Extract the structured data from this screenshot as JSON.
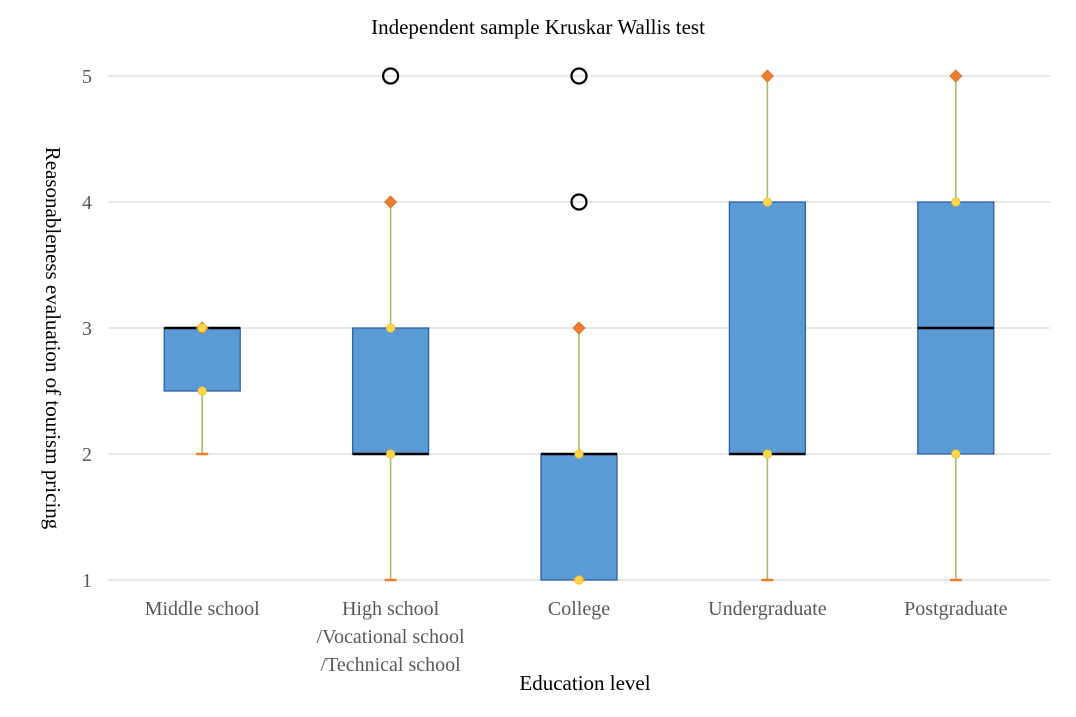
{
  "chart_data": {
    "type": "boxplot",
    "title": "Independent sample Kruskar Wallis test",
    "xlabel": "Education level",
    "ylabel": "Reasonableness evaluation of tourism pricing",
    "ylim": [
      1,
      5
    ],
    "yticks": [
      "1",
      "2",
      "3",
      "4",
      "5"
    ],
    "grid": true,
    "categories": [
      [
        "Middle school"
      ],
      [
        "High school",
        "/Vocational school",
        "/Technical school"
      ],
      [
        "College"
      ],
      [
        "Undergraduate"
      ],
      [
        "Postgraduate"
      ]
    ],
    "boxes": [
      {
        "min": 2,
        "q1": 2.5,
        "median": 3,
        "q3": 3,
        "max": 3,
        "outliers": []
      },
      {
        "min": 1,
        "q1": 2,
        "median": 2,
        "q3": 3,
        "max": 4,
        "outliers": [
          5
        ]
      },
      {
        "min": 1,
        "q1": 1,
        "median": 2,
        "q3": 2,
        "max": 3,
        "outliers": [
          4,
          5
        ]
      },
      {
        "min": 1,
        "q1": 2,
        "median": 2,
        "q3": 4,
        "max": 5,
        "outliers": []
      },
      {
        "min": 1,
        "q1": 2,
        "median": 3,
        "q3": 4,
        "max": 5,
        "outliers": []
      }
    ],
    "colors": {
      "box_fill": "#5b9bd5",
      "box_stroke": "#2f5fa5",
      "median": "#000000",
      "whisker": "#9ec26a",
      "max_marker": "#ed7d31",
      "quartile_marker": "#ffd54a",
      "outlier": "#000000",
      "grid": "#d9d9d9"
    }
  }
}
